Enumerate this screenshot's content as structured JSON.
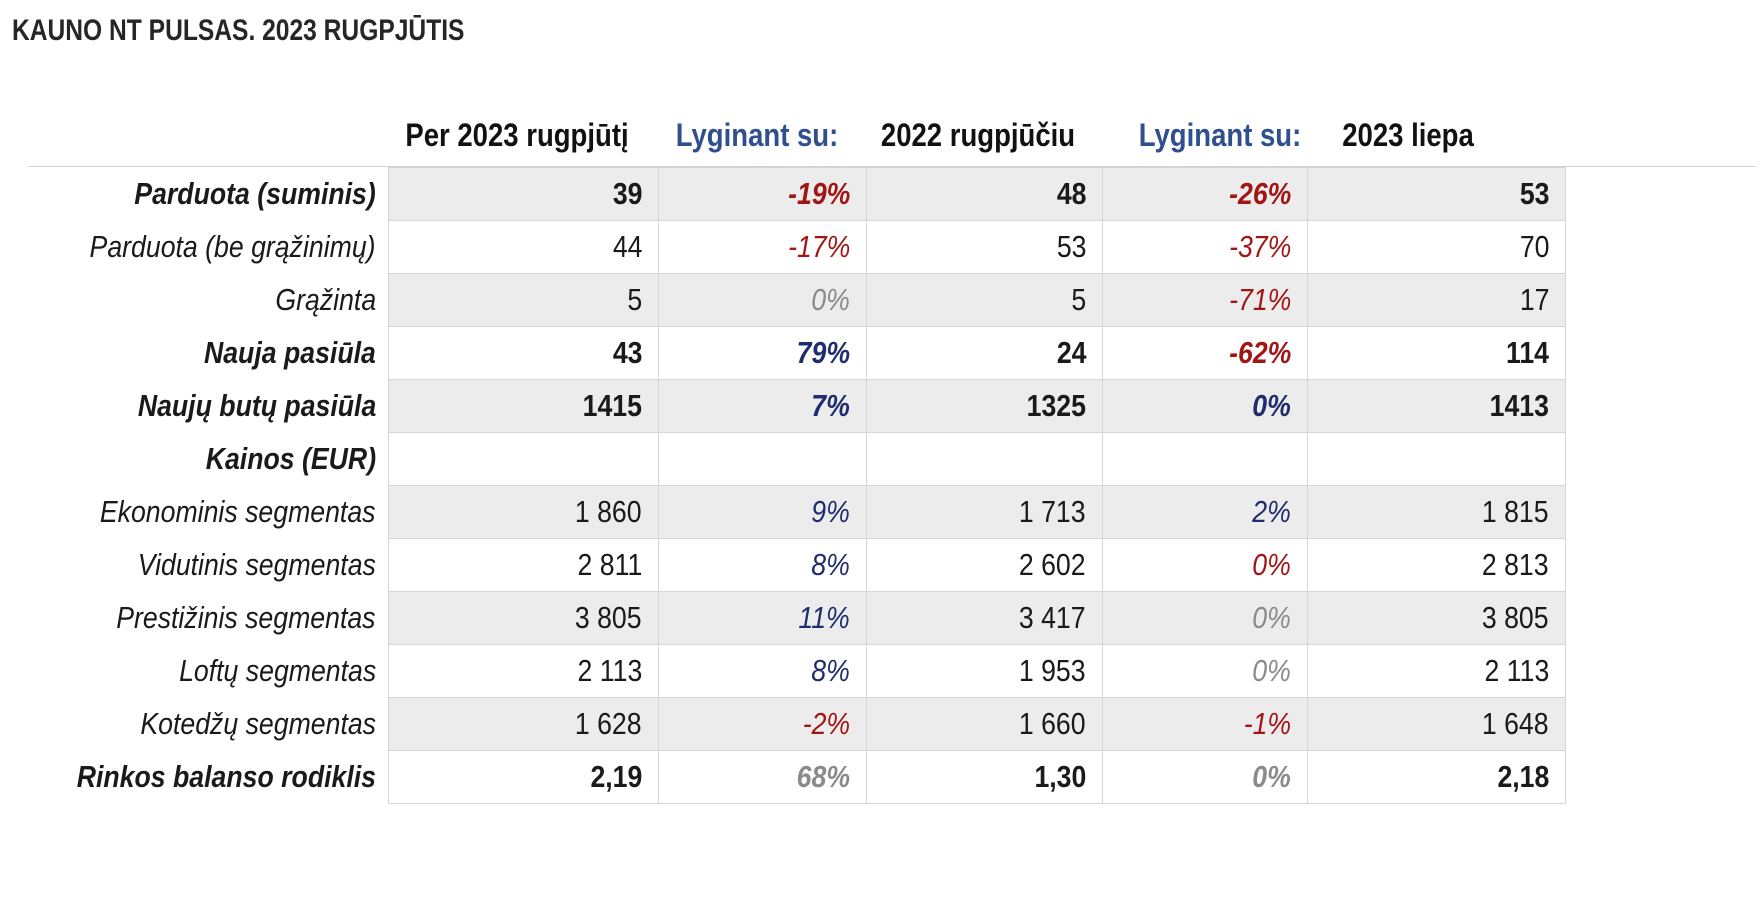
{
  "title": "KAUNO NT PULSAS. 2023 RUGPJŪTIS",
  "headers": {
    "current": "Per 2023 rugpjūtį",
    "compare1": "Lyginant su:",
    "prev_year": "2022 rugpjūčiu",
    "compare2": "Lyginant su:",
    "prev_month": "2023 liepa"
  },
  "colors": {
    "negative": "#a11515",
    "positive": "#1f2d6e",
    "neutral": "#8a8a8a",
    "header_blue": "#2f4f8f",
    "row_shade": "#ececec"
  },
  "rows": [
    {
      "label": "Parduota (suminis)",
      "bold": true,
      "shade": true,
      "current": "39",
      "chg1": "-19%",
      "chg1_color": "negative",
      "prev_year": "48",
      "chg2": "-26%",
      "chg2_color": "negative",
      "prev_month": "53"
    },
    {
      "label": "Parduota (be grąžinimų)",
      "bold": false,
      "shade": false,
      "current": "44",
      "chg1": "-17%",
      "chg1_color": "negative",
      "prev_year": "53",
      "chg2": "-37%",
      "chg2_color": "negative",
      "prev_month": "70"
    },
    {
      "label": "Grąžinta",
      "bold": false,
      "shade": true,
      "current": "5",
      "chg1": "0%",
      "chg1_color": "neutral",
      "prev_year": "5",
      "chg2": "-71%",
      "chg2_color": "negative",
      "prev_month": "17"
    },
    {
      "label": "Nauja pasiūla",
      "bold": true,
      "shade": false,
      "current": "43",
      "chg1": "79%",
      "chg1_color": "positive",
      "prev_year": "24",
      "chg2": "-62%",
      "chg2_color": "negative",
      "prev_month": "114"
    },
    {
      "label": "Naujų butų pasiūla",
      "bold": true,
      "shade": true,
      "current": "1415",
      "chg1": "7%",
      "chg1_color": "positive",
      "prev_year": "1325",
      "chg2": "0%",
      "chg2_color": "positive",
      "prev_month": "1413"
    },
    {
      "label": "Kainos (EUR)",
      "bold": true,
      "shade": false,
      "current": "",
      "chg1": "",
      "chg1_color": "neutral",
      "prev_year": "",
      "chg2": "",
      "chg2_color": "neutral",
      "prev_month": ""
    },
    {
      "label": "Ekonominis segmentas",
      "bold": false,
      "shade": true,
      "current": "1 860",
      "chg1": "9%",
      "chg1_color": "positive",
      "prev_year": "1 713",
      "chg2": "2%",
      "chg2_color": "positive",
      "prev_month": "1 815"
    },
    {
      "label": "Vidutinis segmentas",
      "bold": false,
      "shade": false,
      "current": "2 811",
      "chg1": "8%",
      "chg1_color": "positive",
      "prev_year": "2 602",
      "chg2": "0%",
      "chg2_color": "negative",
      "prev_month": "2 813"
    },
    {
      "label": "Prestižinis segmentas",
      "bold": false,
      "shade": true,
      "current": "3 805",
      "chg1": "11%",
      "chg1_color": "positive",
      "prev_year": "3 417",
      "chg2": "0%",
      "chg2_color": "neutral",
      "prev_month": "3 805"
    },
    {
      "label": "Loftų segmentas",
      "bold": false,
      "shade": false,
      "current": "2 113",
      "chg1": "8%",
      "chg1_color": "positive",
      "prev_year": "1 953",
      "chg2": "0%",
      "chg2_color": "neutral",
      "prev_month": "2 113"
    },
    {
      "label": "Kotedžų segmentas",
      "bold": false,
      "shade": true,
      "current": "1 628",
      "chg1": "-2%",
      "chg1_color": "negative",
      "prev_year": "1 660",
      "chg2": "-1%",
      "chg2_color": "negative",
      "prev_month": "1 648"
    },
    {
      "label": "Rinkos balanso rodiklis",
      "bold": true,
      "shade": false,
      "current": "2,19",
      "chg1": "68%",
      "chg1_color": "neutral",
      "prev_year": "1,30",
      "chg2": "0%",
      "chg2_color": "neutral",
      "prev_month": "2,18"
    }
  ]
}
